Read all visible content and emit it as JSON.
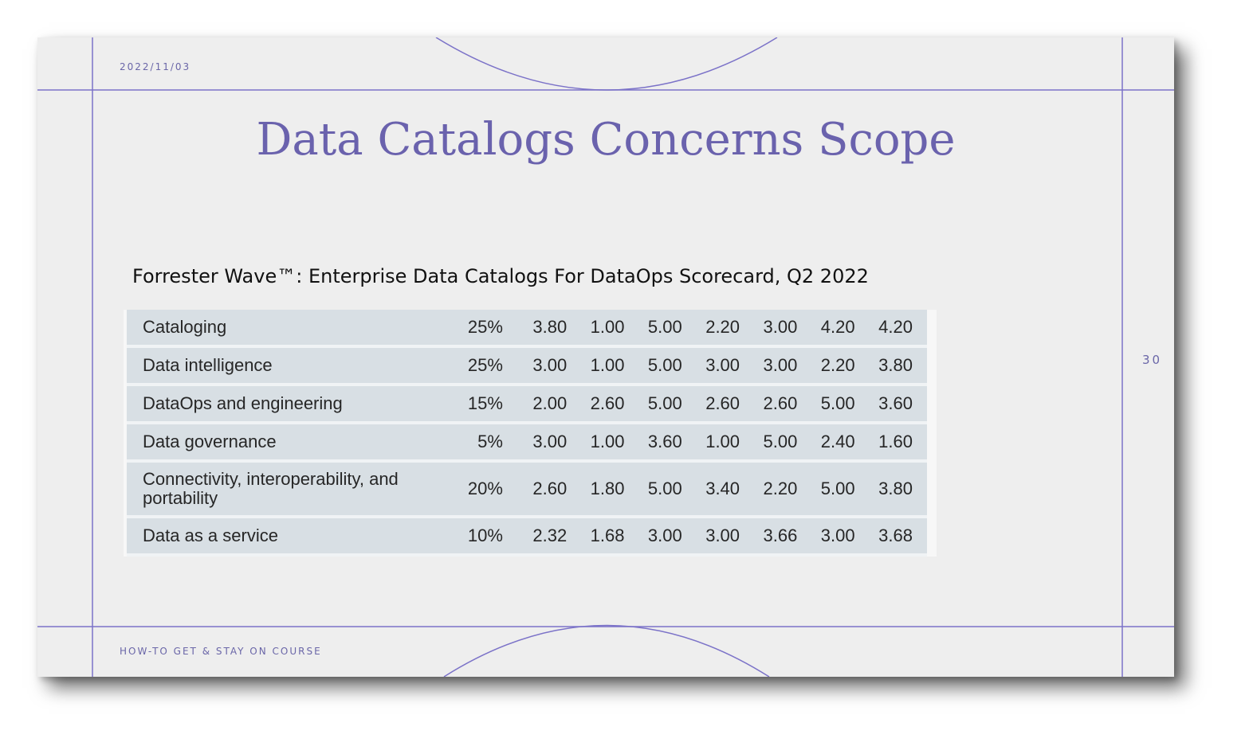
{
  "slide": {
    "date": "2022/11/03",
    "title": "Data Catalogs Concerns Scope",
    "subtitle": "Forrester Wave™: Enterprise Data Catalogs For DataOps Scorecard, Q2 2022",
    "footer": "HOW-TO GET & STAY ON COURSE",
    "page_number": "30",
    "accent_color": "#6a62ad"
  },
  "table": {
    "rows": [
      {
        "label": "Cataloging",
        "weight": "25%",
        "scores": [
          "3.80",
          "1.00",
          "5.00",
          "2.20",
          "3.00",
          "4.20",
          "4.20"
        ]
      },
      {
        "label": "Data intelligence",
        "weight": "25%",
        "scores": [
          "3.00",
          "1.00",
          "5.00",
          "3.00",
          "3.00",
          "2.20",
          "3.80"
        ]
      },
      {
        "label": "DataOps and engineering",
        "weight": "15%",
        "scores": [
          "2.00",
          "2.60",
          "5.00",
          "2.60",
          "2.60",
          "5.00",
          "3.60"
        ]
      },
      {
        "label": "Data governance",
        "weight": "5%",
        "scores": [
          "3.00",
          "1.00",
          "3.60",
          "1.00",
          "5.00",
          "2.40",
          "1.60"
        ]
      },
      {
        "label": "Connectivity, interoperability, and portability",
        "weight": "20%",
        "scores": [
          "2.60",
          "1.80",
          "5.00",
          "3.40",
          "2.20",
          "5.00",
          "3.80"
        ]
      },
      {
        "label": "Data as a service",
        "weight": "10%",
        "scores": [
          "2.32",
          "1.68",
          "3.00",
          "3.00",
          "3.66",
          "3.00",
          "3.68"
        ]
      }
    ]
  }
}
